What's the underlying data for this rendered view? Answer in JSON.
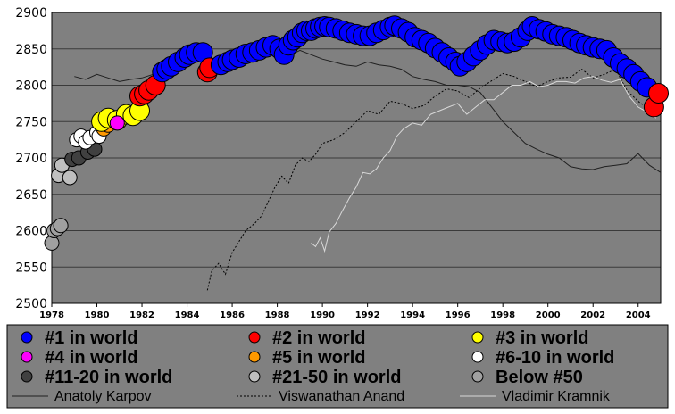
{
  "chart_data": {
    "type": "scatter",
    "title": "",
    "xlabel": "",
    "ylabel": "",
    "xlim": [
      1978,
      2005
    ],
    "ylim": [
      2500,
      2900
    ],
    "x_ticks": [
      "1978",
      "1980",
      "1982",
      "1984",
      "1986",
      "1988",
      "1990",
      "1992",
      "1994",
      "1996",
      "1998",
      "2000",
      "2002",
      "2004"
    ],
    "y_ticks": [
      "2500",
      "2550",
      "2600",
      "2650",
      "2700",
      "2750",
      "2800",
      "2850",
      "2900"
    ],
    "grid": true,
    "legend_position": "bottom",
    "colors": {
      "plot_background": "#808080",
      "legend_background": "#808080",
      "rank1": "#0000ff",
      "rank2": "#ff0000",
      "rank3": "#ffff00",
      "rank4": "#ff00ff",
      "rank5": "#ff9900",
      "rank6_10": "#ffffff",
      "rank11_20": "#404040",
      "rank21_50": "#bfbfbf",
      "below50": "#a0a0a0"
    },
    "legend": {
      "markers": [
        {
          "label": "#1 in world",
          "color": "#0000ff"
        },
        {
          "label": "#2 in world",
          "color": "#ff0000"
        },
        {
          "label": "#3 in world",
          "color": "#ffff00"
        },
        {
          "label": "#4 in world",
          "color": "#ff00ff"
        },
        {
          "label": "#5 in world",
          "color": "#ff9900"
        },
        {
          "label": "#6-10 in world",
          "color": "#ffffff"
        },
        {
          "label": "#11-20 in world",
          "color": "#404040"
        },
        {
          "label": "#21-50 in world",
          "color": "#bfbfbf"
        },
        {
          "label": "Below #50",
          "color": "#a0a0a0"
        }
      ],
      "lines": [
        {
          "label": "Anatoly Karpov",
          "style": "solid",
          "color": "#202020"
        },
        {
          "label": "Viswanathan Anand",
          "style": "dotted",
          "color": "#000000"
        },
        {
          "label": "Vladimir Kramnik",
          "style": "solid",
          "color": "#d8d8d8"
        }
      ]
    },
    "rank_series": {
      "comment_free": true,
      "points": [
        [
          1978.0,
          2583,
          "below50"
        ],
        [
          1978.1,
          2600,
          "below50"
        ],
        [
          1978.25,
          2603,
          "below50"
        ],
        [
          1978.4,
          2607,
          "below50"
        ],
        [
          1978.3,
          2676,
          "rank21_50"
        ],
        [
          1978.45,
          2690,
          "rank21_50"
        ],
        [
          1978.8,
          2673,
          "rank21_50"
        ],
        [
          1978.9,
          2698,
          "rank11_20"
        ],
        [
          1979.2,
          2700,
          "rank11_20"
        ],
        [
          1979.6,
          2708,
          "rank11_20"
        ],
        [
          1979.9,
          2712,
          "rank11_20"
        ],
        [
          1979.1,
          2725,
          "rank6_10"
        ],
        [
          1979.3,
          2730,
          "rank6_10"
        ],
        [
          1979.5,
          2722,
          "rank6_10"
        ],
        [
          1979.7,
          2728,
          "rank6_10"
        ],
        [
          1980.0,
          2735,
          "rank6_10"
        ],
        [
          1980.1,
          2730,
          "rank6_10"
        ],
        [
          1980.3,
          2740,
          "rank5"
        ],
        [
          1980.5,
          2745,
          "rank5"
        ],
        [
          1980.2,
          2750,
          "rank3"
        ],
        [
          1980.5,
          2755,
          "rank3"
        ],
        [
          1980.9,
          2752,
          "rank3"
        ],
        [
          1981.3,
          2760,
          "rank3"
        ],
        [
          1981.6,
          2758,
          "rank3"
        ],
        [
          1981.9,
          2765,
          "rank3"
        ],
        [
          1980.9,
          2748,
          "rank4"
        ],
        [
          1981.9,
          2785,
          "rank2"
        ],
        [
          1982.1,
          2788,
          "rank2"
        ],
        [
          1982.3,
          2793,
          "rank2"
        ],
        [
          1982.6,
          2800,
          "rank2"
        ],
        [
          1982.9,
          2818,
          "rank1"
        ],
        [
          1983.1,
          2822,
          "rank1"
        ],
        [
          1983.3,
          2826,
          "rank1"
        ],
        [
          1983.6,
          2832,
          "rank1"
        ],
        [
          1983.9,
          2838,
          "rank1"
        ],
        [
          1984.1,
          2842,
          "rank1"
        ],
        [
          1984.4,
          2845,
          "rank1"
        ],
        [
          1984.7,
          2845,
          "rank1"
        ],
        [
          1984.9,
          2818,
          "rank2"
        ],
        [
          1985.0,
          2824,
          "rank2"
        ],
        [
          1985.5,
          2828,
          "rank1"
        ],
        [
          1985.8,
          2832,
          "rank1"
        ],
        [
          1986.0,
          2835,
          "rank1"
        ],
        [
          1986.3,
          2838,
          "rank1"
        ],
        [
          1986.6,
          2843,
          "rank1"
        ],
        [
          1986.9,
          2845,
          "rank1"
        ],
        [
          1987.2,
          2848,
          "rank1"
        ],
        [
          1987.5,
          2852,
          "rank1"
        ],
        [
          1987.8,
          2855,
          "rank1"
        ],
        [
          1988.1,
          2850,
          "rank1"
        ],
        [
          1988.3,
          2842,
          "rank1"
        ],
        [
          1988.5,
          2855,
          "rank1"
        ],
        [
          1988.7,
          2862,
          "rank1"
        ],
        [
          1988.9,
          2866,
          "rank1"
        ],
        [
          1989.1,
          2872,
          "rank1"
        ],
        [
          1989.3,
          2875,
          "rank1"
        ],
        [
          1989.5,
          2875,
          "rank1"
        ],
        [
          1989.7,
          2878,
          "rank1"
        ],
        [
          1989.9,
          2880,
          "rank1"
        ],
        [
          1990.1,
          2881,
          "rank1"
        ],
        [
          1990.3,
          2880,
          "rank1"
        ],
        [
          1990.6,
          2878,
          "rank1"
        ],
        [
          1990.9,
          2875,
          "rank1"
        ],
        [
          1991.2,
          2872,
          "rank1"
        ],
        [
          1991.5,
          2870,
          "rank1"
        ],
        [
          1991.8,
          2868,
          "rank1"
        ],
        [
          1992.1,
          2868,
          "rank1"
        ],
        [
          1992.4,
          2872,
          "rank1"
        ],
        [
          1992.7,
          2876,
          "rank1"
        ],
        [
          1993.0,
          2880,
          "rank1"
        ],
        [
          1993.2,
          2882,
          "rank1"
        ],
        [
          1993.5,
          2878,
          "rank1"
        ],
        [
          1993.8,
          2873,
          "rank1"
        ],
        [
          1994.1,
          2866,
          "rank1"
        ],
        [
          1994.4,
          2862,
          "rank1"
        ],
        [
          1994.7,
          2858,
          "rank1"
        ],
        [
          1995.0,
          2851,
          "rank1"
        ],
        [
          1995.3,
          2845,
          "rank1"
        ],
        [
          1995.6,
          2838,
          "rank1"
        ],
        [
          1995.9,
          2832,
          "rank1"
        ],
        [
          1996.1,
          2826,
          "rank1"
        ],
        [
          1996.4,
          2832,
          "rank1"
        ],
        [
          1996.7,
          2840,
          "rank1"
        ],
        [
          1997.0,
          2848,
          "rank1"
        ],
        [
          1997.3,
          2856,
          "rank1"
        ],
        [
          1997.6,
          2862,
          "rank1"
        ],
        [
          1997.9,
          2860,
          "rank1"
        ],
        [
          1998.2,
          2858,
          "rank1"
        ],
        [
          1998.5,
          2860,
          "rank1"
        ],
        [
          1998.8,
          2866,
          "rank1"
        ],
        [
          1999.1,
          2875,
          "rank1"
        ],
        [
          1999.3,
          2881,
          "rank1"
        ],
        [
          1999.6,
          2877,
          "rank1"
        ],
        [
          1999.9,
          2874,
          "rank1"
        ],
        [
          2000.2,
          2870,
          "rank1"
        ],
        [
          2000.5,
          2868,
          "rank1"
        ],
        [
          2000.8,
          2866,
          "rank1"
        ],
        [
          2001.1,
          2862,
          "rank1"
        ],
        [
          2001.4,
          2858,
          "rank1"
        ],
        [
          2001.7,
          2855,
          "rank1"
        ],
        [
          2002.0,
          2852,
          "rank1"
        ],
        [
          2002.3,
          2850,
          "rank1"
        ],
        [
          2002.6,
          2848,
          "rank1"
        ],
        [
          2002.9,
          2838,
          "rank1"
        ],
        [
          2003.2,
          2830,
          "rank1"
        ],
        [
          2003.5,
          2823,
          "rank1"
        ],
        [
          2003.8,
          2815,
          "rank1"
        ],
        [
          2004.1,
          2805,
          "rank1"
        ],
        [
          2004.4,
          2797,
          "rank1"
        ],
        [
          2004.7,
          2770,
          "rank2"
        ],
        [
          2004.9,
          2789,
          "rank2"
        ]
      ]
    },
    "line_series": [
      {
        "name": "Anatoly Karpov",
        "style": "solid",
        "x": [
          1979.0,
          1979.5,
          1980.0,
          1980.5,
          1981.0,
          1981.5,
          1982.0,
          1982.5,
          1983.0,
          1983.5,
          1984.0,
          1984.5,
          1985.0,
          1985.5,
          1986.0,
          1986.5,
          1987.0,
          1987.5,
          1988.0,
          1988.5,
          1989.0,
          1989.5,
          1990.0,
          1990.5,
          1991.0,
          1991.5,
          1992.0,
          1992.5,
          1993.0,
          1993.5,
          1994.0,
          1994.5,
          1995.0,
          1995.5,
          1996.0,
          1996.5,
          1997.0,
          1997.5,
          1998.0,
          1998.5,
          1999.0,
          1999.5,
          2000.0,
          2000.5,
          2001.0,
          2001.5,
          2002.0,
          2002.5,
          2003.0,
          2003.5,
          2004.0,
          2004.5,
          2005.0
        ],
        "y": [
          2812,
          2808,
          2815,
          2810,
          2805,
          2808,
          2810,
          2815,
          2812,
          2818,
          2826,
          2838,
          2834,
          2832,
          2842,
          2840,
          2838,
          2843,
          2842,
          2840,
          2848,
          2842,
          2836,
          2832,
          2828,
          2826,
          2832,
          2828,
          2826,
          2822,
          2812,
          2808,
          2805,
          2800,
          2800,
          2798,
          2790,
          2770,
          2750,
          2735,
          2720,
          2712,
          2705,
          2700,
          2688,
          2685,
          2684,
          2688,
          2690,
          2692,
          2706,
          2690,
          2680
        ]
      },
      {
        "name": "Viswanathan Anand",
        "style": "dotted",
        "x": [
          1984.9,
          1985.1,
          1985.4,
          1985.7,
          1986.0,
          1986.3,
          1986.6,
          1987.0,
          1987.3,
          1987.6,
          1987.9,
          1988.2,
          1988.5,
          1988.8,
          1989.1,
          1989.4,
          1989.7,
          1990.0,
          1990.5,
          1991.0,
          1991.5,
          1992.0,
          1992.5,
          1993.0,
          1993.5,
          1994.0,
          1994.5,
          1995.0,
          1995.5,
          1996.0,
          1996.5,
          1997.0,
          1997.5,
          1998.0,
          1998.5,
          1999.0,
          1999.5,
          2000.0,
          2000.5,
          2001.0,
          2001.5,
          2002.0,
          2002.5,
          2003.0,
          2003.5,
          2004.0,
          2004.5,
          2005.0
        ],
        "y": [
          2518,
          2545,
          2555,
          2540,
          2570,
          2585,
          2600,
          2610,
          2620,
          2640,
          2660,
          2675,
          2665,
          2690,
          2700,
          2695,
          2705,
          2720,
          2725,
          2735,
          2750,
          2765,
          2760,
          2778,
          2775,
          2768,
          2772,
          2785,
          2795,
          2792,
          2783,
          2796,
          2806,
          2816,
          2812,
          2805,
          2798,
          2805,
          2810,
          2811,
          2822,
          2810,
          2815,
          2822,
          2793,
          2778,
          2766,
          2773
        ]
      },
      {
        "name": "Vladimir Kramnik",
        "style": "solid",
        "x": [
          1989.5,
          1989.7,
          1989.9,
          1990.1,
          1990.3,
          1990.6,
          1990.9,
          1991.2,
          1991.5,
          1991.8,
          1992.1,
          1992.4,
          1992.7,
          1993.0,
          1993.3,
          1993.6,
          1994.0,
          1994.4,
          1994.8,
          1995.2,
          1995.6,
          1996.0,
          1996.4,
          1996.8,
          1997.2,
          1997.6,
          1998.0,
          1998.4,
          1998.8,
          1999.2,
          1999.6,
          2000.0,
          2000.4,
          2000.8,
          2001.2,
          2001.6,
          2002.0,
          2002.4,
          2002.8,
          2003.2,
          2003.6,
          2004.0,
          2004.4,
          2004.8
        ],
        "y": [
          2583,
          2578,
          2590,
          2572,
          2598,
          2610,
          2628,
          2645,
          2660,
          2680,
          2678,
          2685,
          2700,
          2710,
          2730,
          2740,
          2748,
          2745,
          2760,
          2765,
          2770,
          2775,
          2760,
          2770,
          2780,
          2780,
          2790,
          2800,
          2800,
          2805,
          2798,
          2800,
          2805,
          2805,
          2803,
          2810,
          2812,
          2807,
          2804,
          2808,
          2785,
          2770,
          2763,
          2755
        ]
      }
    ]
  }
}
